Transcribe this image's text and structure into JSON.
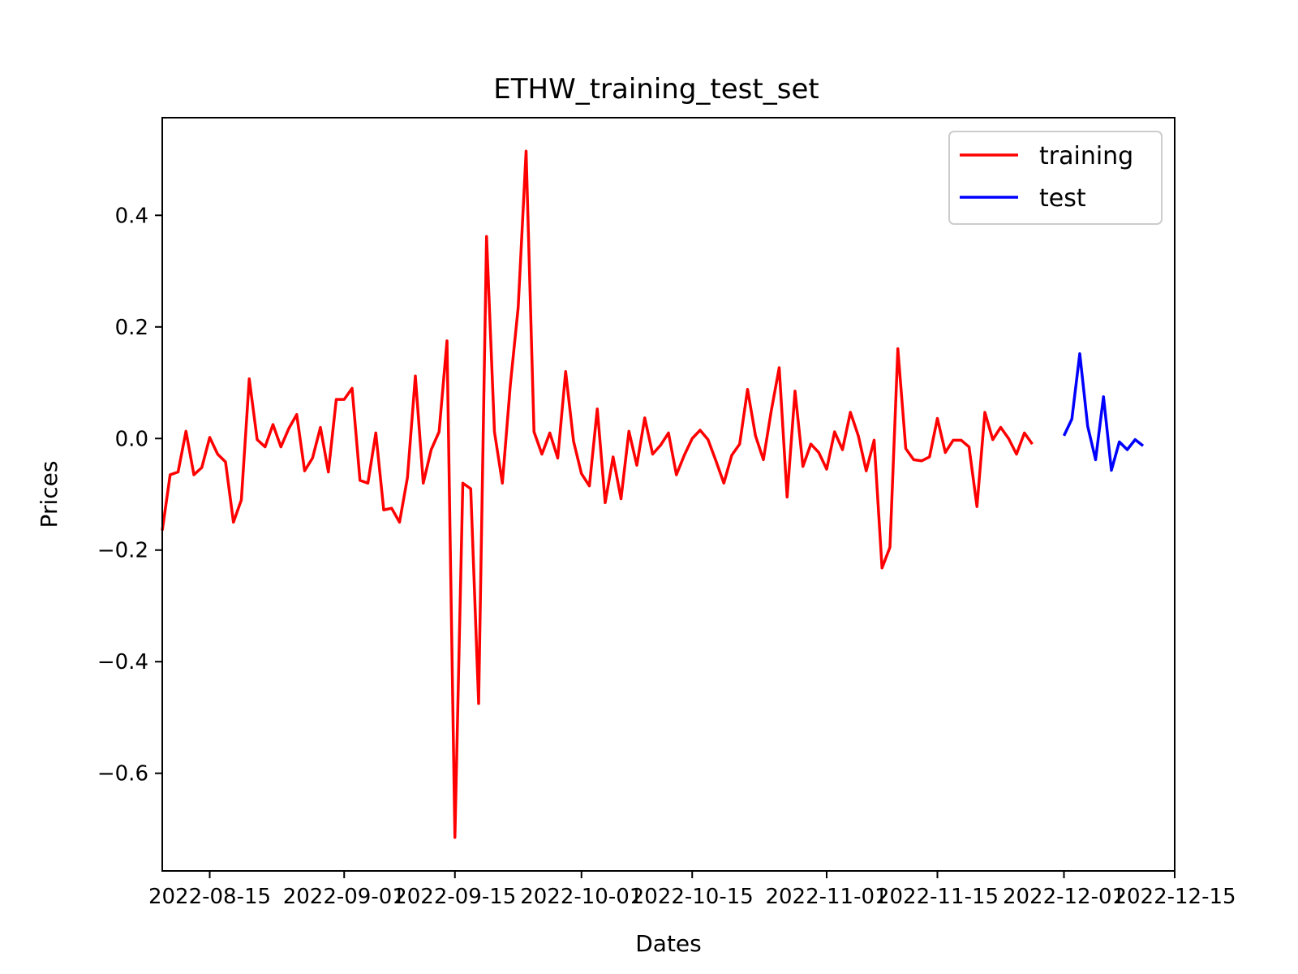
{
  "chart_data": {
    "type": "line",
    "title": "ETHW_training_test_set",
    "xlabel": "Dates",
    "ylabel": "Prices",
    "xlim": [
      "2022-08-09",
      "2022-12-15"
    ],
    "ylim": [
      -0.775,
      0.575
    ],
    "x_ticks": [
      "2022-08-15",
      "2022-09-01",
      "2022-09-15",
      "2022-10-01",
      "2022-10-15",
      "2022-11-01",
      "2022-11-15",
      "2022-12-01",
      "2022-12-15"
    ],
    "y_ticks": [
      {
        "value": 0.4,
        "label": "0.4"
      },
      {
        "value": 0.2,
        "label": "0.2"
      },
      {
        "value": 0.0,
        "label": "0.0"
      },
      {
        "value": -0.2,
        "label": "−0.2"
      },
      {
        "value": -0.4,
        "label": "−0.4"
      },
      {
        "value": -0.6,
        "label": "−0.6"
      }
    ],
    "grid": false,
    "legend_position": "top-right",
    "series": [
      {
        "name": "training",
        "color": "#ff0000",
        "start_date": "2022-08-09",
        "values": [
          -0.165,
          -0.065,
          -0.06,
          0.013,
          -0.065,
          -0.052,
          0.002,
          -0.028,
          -0.042,
          -0.15,
          -0.11,
          0.107,
          -0.002,
          -0.015,
          0.025,
          -0.015,
          0.018,
          0.043,
          -0.058,
          -0.035,
          0.02,
          -0.06,
          0.07,
          0.07,
          0.09,
          -0.075,
          -0.08,
          0.01,
          -0.128,
          -0.125,
          -0.15,
          -0.07,
          0.112,
          -0.08,
          -0.02,
          0.012,
          0.175,
          -0.715,
          -0.08,
          -0.09,
          -0.475,
          0.362,
          0.012,
          -0.08,
          0.095,
          0.235,
          0.515,
          0.012,
          -0.028,
          0.01,
          -0.035,
          0.12,
          -0.005,
          -0.063,
          -0.085,
          0.053,
          -0.115,
          -0.033,
          -0.108,
          0.013,
          -0.048,
          0.037,
          -0.028,
          -0.012,
          0.01,
          -0.065,
          -0.03,
          0.0,
          0.015,
          -0.002,
          -0.04,
          -0.08,
          -0.03,
          -0.01,
          0.088,
          0.005,
          -0.038,
          0.05,
          0.127,
          -0.105,
          0.085,
          -0.05,
          -0.01,
          -0.025,
          -0.055,
          0.012,
          -0.02,
          0.047,
          0.005,
          -0.058,
          -0.003,
          -0.232,
          -0.195,
          0.161,
          -0.018,
          -0.038,
          -0.04,
          -0.033,
          0.036,
          -0.025,
          -0.003,
          -0.003,
          -0.015,
          -0.122,
          0.047,
          -0.002,
          0.02,
          0.0,
          -0.028,
          0.01,
          -0.01
        ]
      },
      {
        "name": "test",
        "color": "#0000ff",
        "start_date": "2022-12-01",
        "values": [
          0.005,
          0.035,
          0.152,
          0.022,
          -0.038,
          0.075,
          -0.057,
          -0.006,
          -0.02,
          -0.002,
          -0.013
        ]
      }
    ]
  }
}
